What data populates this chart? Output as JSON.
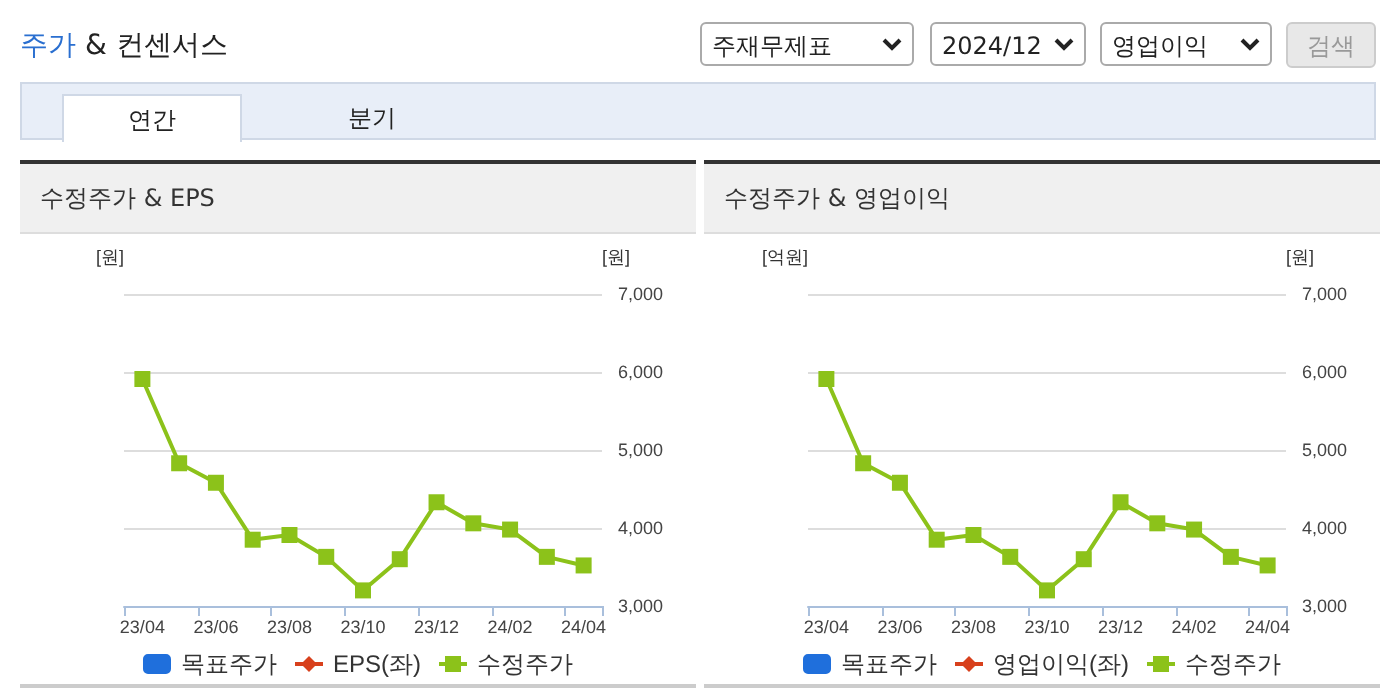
{
  "chart_data": [
    {
      "type": "line",
      "title": "수정주가 & EPS",
      "ylabel": "[원]",
      "y2label": "[원]",
      "annotations": [
        "주가 & 컨센서스",
        "주재무제표",
        "2024/12",
        "영업이익",
        "검색",
        "연간",
        "분기"
      ],
      "categories": [
        "23/04",
        null,
        "23/06",
        null,
        "23/08",
        null,
        "23/10",
        null,
        "23/12",
        null,
        "24/02",
        null,
        "24/04"
      ],
      "series": [
        {
          "name": "목표주가",
          "type": "bar",
          "color": "#1f6fdc",
          "values": [
            null,
            null,
            null,
            null,
            null,
            null,
            null,
            null,
            null,
            null,
            null,
            null,
            null
          ]
        },
        {
          "name": "EPS(좌)",
          "marker": "diamond",
          "color": "#d8401c",
          "values": [
            null,
            null,
            null,
            null,
            null,
            null,
            null,
            null,
            null,
            null,
            null,
            null,
            null
          ]
        },
        {
          "name": "수정주가",
          "marker": "square",
          "axis": "y2",
          "color": "#8cc21a",
          "values": [
            5910,
            4830,
            4580,
            3850,
            3910,
            3630,
            3200,
            3600,
            4330,
            4060,
            3980,
            3630,
            3520
          ]
        }
      ],
      "y2lim": [
        3000,
        7000
      ],
      "y2ticks": [
        {
          "value": 3000,
          "label": "3,000"
        },
        {
          "value": 4000,
          "label": "4,000"
        },
        {
          "value": 5000,
          "label": "5,000"
        },
        {
          "value": 6000,
          "label": "6,000"
        },
        {
          "value": 7000,
          "label": "7,000"
        }
      ],
      "grid": "y",
      "legend": "bottom"
    },
    {
      "type": "line",
      "title": "수정주가 & 영업이익",
      "ylabel": "[억원]",
      "y2label": "[원]",
      "categories": [
        "23/04",
        null,
        "23/06",
        null,
        "23/08",
        null,
        "23/10",
        null,
        "23/12",
        null,
        "24/02",
        null,
        "24/04"
      ],
      "series": [
        {
          "name": "목표주가",
          "type": "bar",
          "color": "#1f6fdc",
          "values": [
            null,
            null,
            null,
            null,
            null,
            null,
            null,
            null,
            null,
            null,
            null,
            null,
            null
          ]
        },
        {
          "name": "영업이익(좌)",
          "marker": "diamond",
          "color": "#d8401c",
          "values": [
            null,
            null,
            null,
            null,
            null,
            null,
            null,
            null,
            null,
            null,
            null,
            null,
            null
          ]
        },
        {
          "name": "수정주가",
          "marker": "square",
          "axis": "y2",
          "color": "#8cc21a",
          "values": [
            5910,
            4830,
            4580,
            3850,
            3910,
            3630,
            3200,
            3600,
            4330,
            4060,
            3980,
            3630,
            3520
          ]
        }
      ],
      "y2lim": [
        3000,
        7000
      ],
      "y2ticks": [
        {
          "value": 3000,
          "label": "3,000"
        },
        {
          "value": 4000,
          "label": "4,000"
        },
        {
          "value": 5000,
          "label": "5,000"
        },
        {
          "value": 6000,
          "label": "6,000"
        },
        {
          "value": 7000,
          "label": "7,000"
        }
      ],
      "grid": "y",
      "legend": "bottom"
    }
  ]
}
